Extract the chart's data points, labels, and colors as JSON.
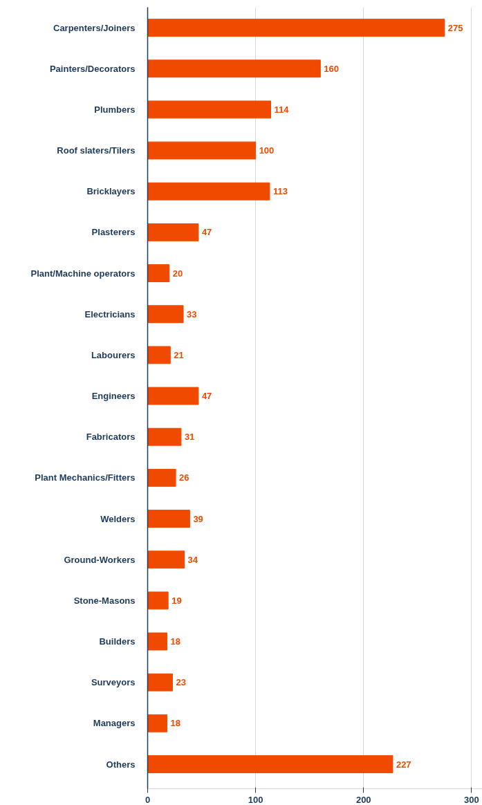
{
  "chart_data": {
    "type": "bar",
    "orientation": "horizontal",
    "categories": [
      "Carpenters/Joiners",
      "Painters/Decorators",
      "Plumbers",
      "Roof slaters/Tilers",
      "Bricklayers",
      "Plasterers",
      "Plant/Machine operators",
      "Electricians",
      "Labourers",
      "Engineers",
      "Fabricators",
      "Plant Mechanics/Fitters",
      "Welders",
      "Ground-Workers",
      "Stone-Masons",
      "Builders",
      "Surveyors",
      "Managers",
      "Others"
    ],
    "values": [
      275,
      160,
      114,
      100,
      113,
      47,
      20,
      33,
      21,
      47,
      31,
      26,
      39,
      34,
      19,
      18,
      23,
      18,
      227
    ],
    "color": "#f04a00",
    "xlim": [
      0,
      310
    ],
    "xticks": [
      0,
      100,
      200,
      300
    ],
    "grid": "x",
    "data_labels": true
  }
}
